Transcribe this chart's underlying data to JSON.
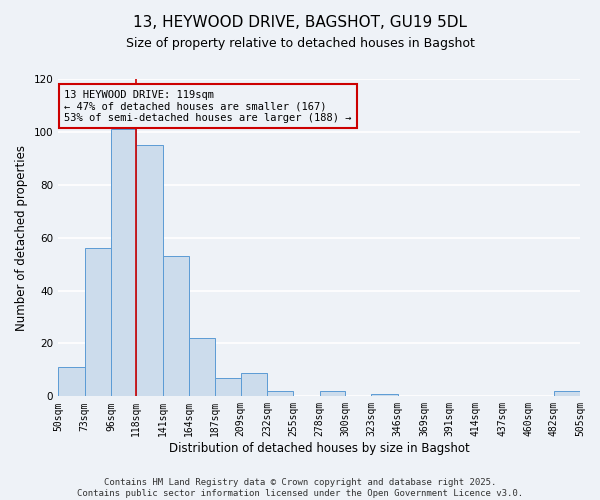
{
  "title": "13, HEYWOOD DRIVE, BAGSHOT, GU19 5DL",
  "subtitle": "Size of property relative to detached houses in Bagshot",
  "xlabel": "Distribution of detached houses by size in Bagshot",
  "ylabel": "Number of detached properties",
  "bin_edges": [
    50,
    73,
    96,
    118,
    141,
    164,
    187,
    209,
    232,
    255,
    278,
    300,
    323,
    346,
    369,
    391,
    414,
    437,
    460,
    482,
    505
  ],
  "bar_heights": [
    11,
    56,
    101,
    95,
    53,
    22,
    7,
    9,
    2,
    0,
    2,
    0,
    1,
    0,
    0,
    0,
    0,
    0,
    0,
    2
  ],
  "bar_color": "#ccdcec",
  "bar_edge_color": "#5b9bd5",
  "vline_x": 118,
  "vline_color": "#cc0000",
  "annotation_line1": "13 HEYWOOD DRIVE: 119sqm",
  "annotation_line2": "← 47% of detached houses are smaller (167)",
  "annotation_line3": "53% of semi-detached houses are larger (188) →",
  "annotation_box_color": "#cc0000",
  "ylim": [
    0,
    120
  ],
  "yticks": [
    0,
    20,
    40,
    60,
    80,
    100,
    120
  ],
  "tick_labels": [
    "50sqm",
    "73sqm",
    "96sqm",
    "118sqm",
    "141sqm",
    "164sqm",
    "187sqm",
    "209sqm",
    "232sqm",
    "255sqm",
    "278sqm",
    "300sqm",
    "323sqm",
    "346sqm",
    "369sqm",
    "391sqm",
    "414sqm",
    "437sqm",
    "460sqm",
    "482sqm",
    "505sqm"
  ],
  "footer_line1": "Contains HM Land Registry data © Crown copyright and database right 2025.",
  "footer_line2": "Contains public sector information licensed under the Open Government Licence v3.0.",
  "bg_color": "#eef2f7",
  "grid_color": "#ffffff",
  "title_fontsize": 11,
  "subtitle_fontsize": 9,
  "axis_label_fontsize": 8.5,
  "tick_fontsize": 7,
  "annotation_fontsize": 7.5,
  "footer_fontsize": 6.5
}
